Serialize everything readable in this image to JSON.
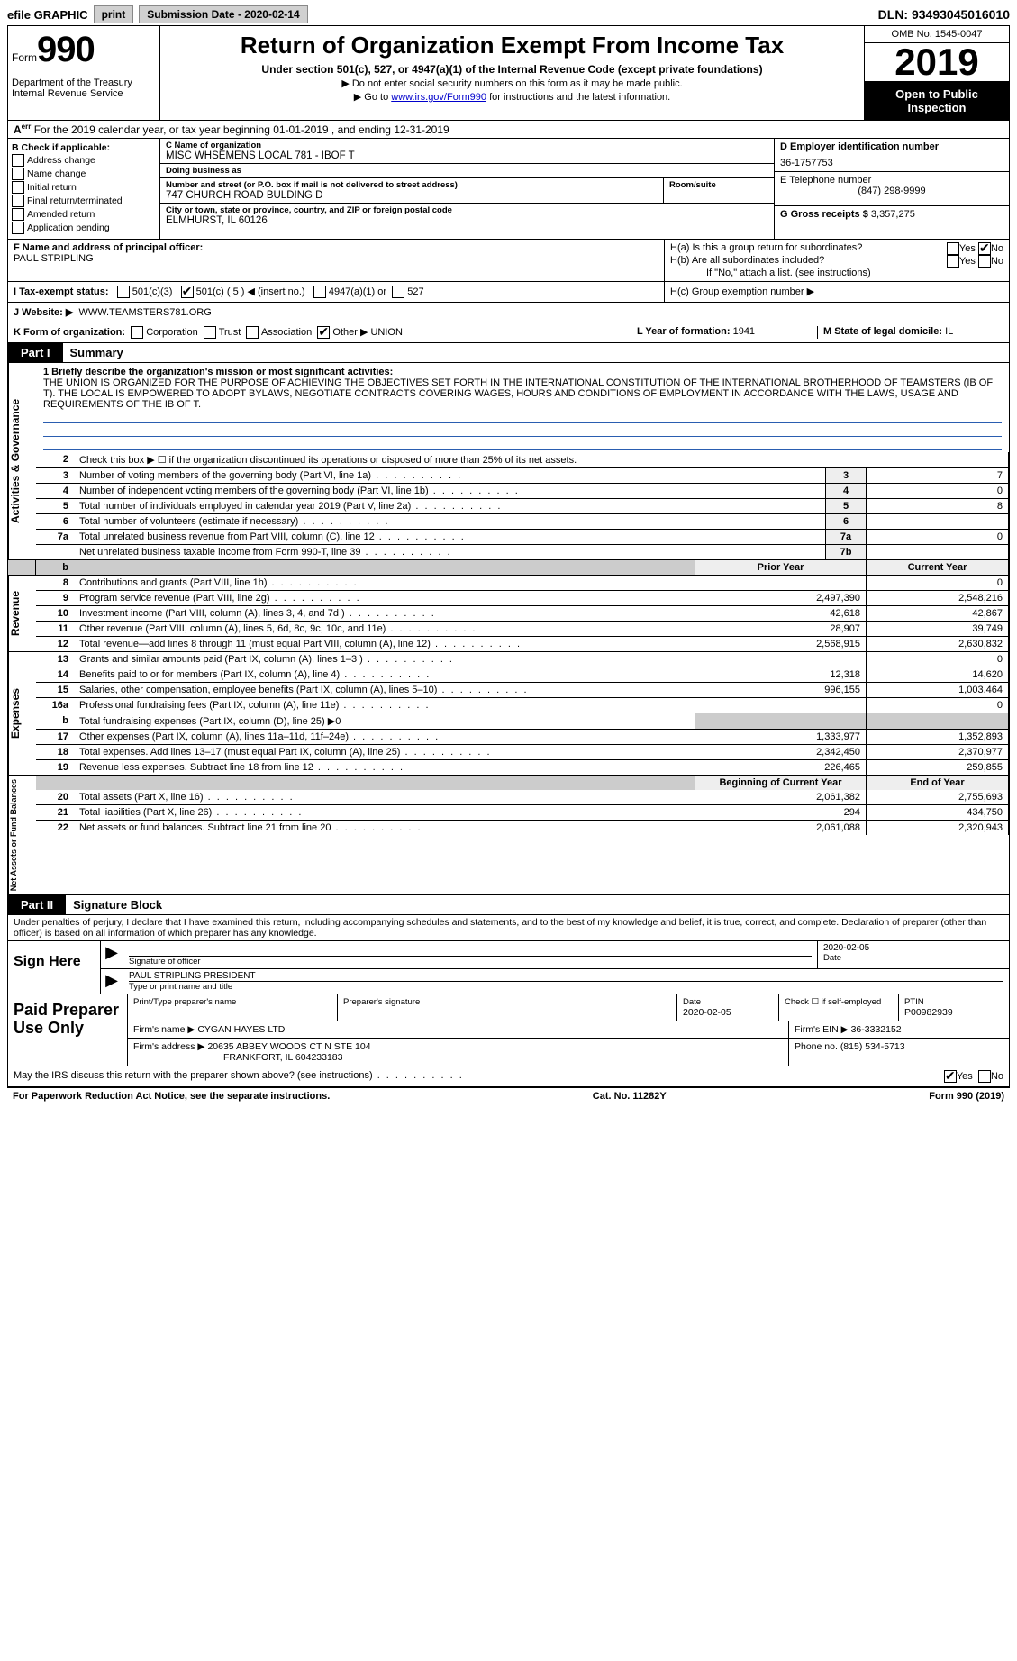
{
  "topbar": {
    "efile": "efile GRAPHIC",
    "print": "print",
    "submission": "Submission Date - 2020-02-14",
    "dln": "DLN: 93493045016010"
  },
  "header": {
    "form_prefix": "Form",
    "form_number": "990",
    "title": "Return of Organization Exempt From Income Tax",
    "subtitle": "Under section 501(c), 527, or 4947(a)(1) of the Internal Revenue Code (except private foundations)",
    "line1": "▶ Do not enter social security numbers on this form as it may be made public.",
    "line2_pre": "▶ Go to ",
    "line2_link": "www.irs.gov/Form990",
    "line2_post": " for instructions and the latest information.",
    "dept": "Department of the Treasury\nInternal Revenue Service",
    "omb": "OMB No. 1545-0047",
    "year": "2019",
    "open": "Open to Public Inspection"
  },
  "A": {
    "text": "For the 2019 calendar year, or tax year beginning 01-01-2019   , and ending 12-31-2019"
  },
  "B": {
    "title": "B Check if applicable:",
    "opts": [
      "Address change",
      "Name change",
      "Initial return",
      "Final return/terminated",
      "Amended return",
      "Application pending"
    ]
  },
  "C": {
    "name_lbl": "C Name of organization",
    "name": "MISC WHSEMENS LOCAL 781 - IBOF T",
    "dba_lbl": "Doing business as",
    "dba": "",
    "addr_lbl": "Number and street (or P.O. box if mail is not delivered to street address)",
    "room_lbl": "Room/suite",
    "addr": "747 CHURCH ROAD BULDING D",
    "city_lbl": "City or town, state or province, country, and ZIP or foreign postal code",
    "city": "ELMHURST, IL  60126"
  },
  "D": {
    "ein_lbl": "D Employer identification number",
    "ein": "36-1757753",
    "tel_lbl": "E Telephone number",
    "tel": "(847) 298-9999",
    "gross_lbl": "G Gross receipts $",
    "gross": "3,357,275"
  },
  "F": {
    "lbl": "F  Name and address of principal officer:",
    "name": "PAUL STRIPLING"
  },
  "H": {
    "a": "H(a)  Is this a group return for subordinates?",
    "b": "H(b)  Are all subordinates included?",
    "b2": "If \"No,\" attach a list. (see instructions)",
    "c": "H(c)  Group exemption number ▶"
  },
  "I": {
    "lbl": "I   Tax-exempt status:",
    "o1": "501(c)(3)",
    "o2": "501(c) ( 5 ) ◀ (insert no.)",
    "o3": "4947(a)(1) or",
    "o4": "527"
  },
  "J": {
    "lbl": "J   Website: ▶",
    "val": "WWW.TEAMSTERS781.ORG"
  },
  "K": {
    "lbl": "K Form of organization:",
    "opts": [
      "Corporation",
      "Trust",
      "Association",
      "Other ▶"
    ],
    "other": "UNION"
  },
  "L": {
    "lbl": "L Year of formation:",
    "val": "1941"
  },
  "M": {
    "lbl": "M State of legal domicile:",
    "val": "IL"
  },
  "parts": {
    "p1": "Part I",
    "p1t": "Summary",
    "p2": "Part II",
    "p2t": "Signature Block"
  },
  "vtabs": {
    "gov": "Activities & Governance",
    "rev": "Revenue",
    "exp": "Expenses",
    "net": "Net Assets or Fund Balances"
  },
  "mission": {
    "lbl": "1   Briefly describe the organization's mission or most significant activities:",
    "text": "THE UNION IS ORGANIZED FOR THE PURPOSE OF ACHIEVING THE OBJECTIVES SET FORTH IN THE INTERNATIONAL CONSTITUTION OF THE INTERNATIONAL BROTHERHOOD OF TEAMSTERS (IB OF T). THE LOCAL IS EMPOWERED TO ADOPT BYLAWS, NEGOTIATE CONTRACTS COVERING WAGES, HOURS AND CONDITIONS OF EMPLOYMENT IN ACCORDANCE WITH THE LAWS, USAGE AND REQUIREMENTS OF THE IB OF T."
  },
  "gov_lines": [
    {
      "n": "2",
      "d": "Check this box ▶ ☐  if the organization discontinued its operations or disposed of more than 25% of its net assets.",
      "no_val": true
    },
    {
      "n": "3",
      "d": "Number of voting members of the governing body (Part VI, line 1a)",
      "box": "3",
      "v": "7"
    },
    {
      "n": "4",
      "d": "Number of independent voting members of the governing body (Part VI, line 1b)",
      "box": "4",
      "v": "0"
    },
    {
      "n": "5",
      "d": "Total number of individuals employed in calendar year 2019 (Part V, line 2a)",
      "box": "5",
      "v": "8"
    },
    {
      "n": "6",
      "d": "Total number of volunteers (estimate if necessary)",
      "box": "6",
      "v": ""
    },
    {
      "n": "7a",
      "d": "Total unrelated business revenue from Part VIII, column (C), line 12",
      "box": "7a",
      "v": "0"
    },
    {
      "n": "",
      "d": "Net unrelated business taxable income from Form 990-T, line 39",
      "box": "7b",
      "v": ""
    }
  ],
  "col_hdr": {
    "py": "Prior Year",
    "cy": "Current Year",
    "bcy": "Beginning of Current Year",
    "eoy": "End of Year"
  },
  "rev_lines": [
    {
      "n": "8",
      "d": "Contributions and grants (Part VIII, line 1h)",
      "py": "",
      "cy": "0"
    },
    {
      "n": "9",
      "d": "Program service revenue (Part VIII, line 2g)",
      "py": "2,497,390",
      "cy": "2,548,216"
    },
    {
      "n": "10",
      "d": "Investment income (Part VIII, column (A), lines 3, 4, and 7d )",
      "py": "42,618",
      "cy": "42,867"
    },
    {
      "n": "11",
      "d": "Other revenue (Part VIII, column (A), lines 5, 6d, 8c, 9c, 10c, and 11e)",
      "py": "28,907",
      "cy": "39,749"
    },
    {
      "n": "12",
      "d": "Total revenue—add lines 8 through 11 (must equal Part VIII, column (A), line 12)",
      "py": "2,568,915",
      "cy": "2,630,832"
    }
  ],
  "exp_lines": [
    {
      "n": "13",
      "d": "Grants and similar amounts paid (Part IX, column (A), lines 1–3 )",
      "py": "",
      "cy": "0"
    },
    {
      "n": "14",
      "d": "Benefits paid to or for members (Part IX, column (A), line 4)",
      "py": "12,318",
      "cy": "14,620"
    },
    {
      "n": "15",
      "d": "Salaries, other compensation, employee benefits (Part IX, column (A), lines 5–10)",
      "py": "996,155",
      "cy": "1,003,464"
    },
    {
      "n": "16a",
      "d": "Professional fundraising fees (Part IX, column (A), line 11e)",
      "py": "",
      "cy": "0"
    },
    {
      "n": "b",
      "d": "Total fundraising expenses (Part IX, column (D), line 25) ▶0",
      "shade": true
    },
    {
      "n": "17",
      "d": "Other expenses (Part IX, column (A), lines 11a–11d, 11f–24e)",
      "py": "1,333,977",
      "cy": "1,352,893"
    },
    {
      "n": "18",
      "d": "Total expenses. Add lines 13–17 (must equal Part IX, column (A), line 25)",
      "py": "2,342,450",
      "cy": "2,370,977"
    },
    {
      "n": "19",
      "d": "Revenue less expenses. Subtract line 18 from line 12",
      "py": "226,465",
      "cy": "259,855"
    }
  ],
  "net_lines": [
    {
      "n": "20",
      "d": "Total assets (Part X, line 16)",
      "py": "2,061,382",
      "cy": "2,755,693"
    },
    {
      "n": "21",
      "d": "Total liabilities (Part X, line 26)",
      "py": "294",
      "cy": "434,750"
    },
    {
      "n": "22",
      "d": "Net assets or fund balances. Subtract line 21 from line 20",
      "py": "2,061,088",
      "cy": "2,320,943"
    }
  ],
  "sig_decl": "Under penalties of perjury, I declare that I have examined this return, including accompanying schedules and statements, and to the best of my knowledge and belief, it is true, correct, and complete. Declaration of preparer (other than officer) is based on all information of which preparer has any knowledge.",
  "sign": {
    "here": "Sign Here",
    "sig_lbl": "Signature of officer",
    "date": "2020-02-05",
    "date_lbl": "Date",
    "name": "PAUL STRIPLING  PRESIDENT",
    "name_lbl": "Type or print name and title"
  },
  "paid": {
    "title": "Paid Preparer Use Only",
    "print_lbl": "Print/Type preparer's name",
    "sig_lbl": "Preparer's signature",
    "date_lbl": "Date",
    "date": "2020-02-05",
    "check_lbl": "Check ☐ if self-employed",
    "ptin_lbl": "PTIN",
    "ptin": "P00982939",
    "firm_name_lbl": "Firm's name    ▶",
    "firm_name": "CYGAN HAYES LTD",
    "firm_ein_lbl": "Firm's EIN ▶",
    "firm_ein": "36-3332152",
    "firm_addr_lbl": "Firm's address ▶",
    "firm_addr1": "20635 ABBEY WOODS CT N STE 104",
    "firm_addr2": "FRANKFORT, IL  604233183",
    "phone_lbl": "Phone no.",
    "phone": "(815) 534-5713"
  },
  "discuss": "May the IRS discuss this return with the preparer shown above? (see instructions)",
  "footer": {
    "left": "For Paperwork Reduction Act Notice, see the separate instructions.",
    "mid": "Cat. No. 11282Y",
    "right": "Form 990 (2019)"
  },
  "yn": {
    "yes": "Yes",
    "no": "No",
    "b": "b"
  }
}
